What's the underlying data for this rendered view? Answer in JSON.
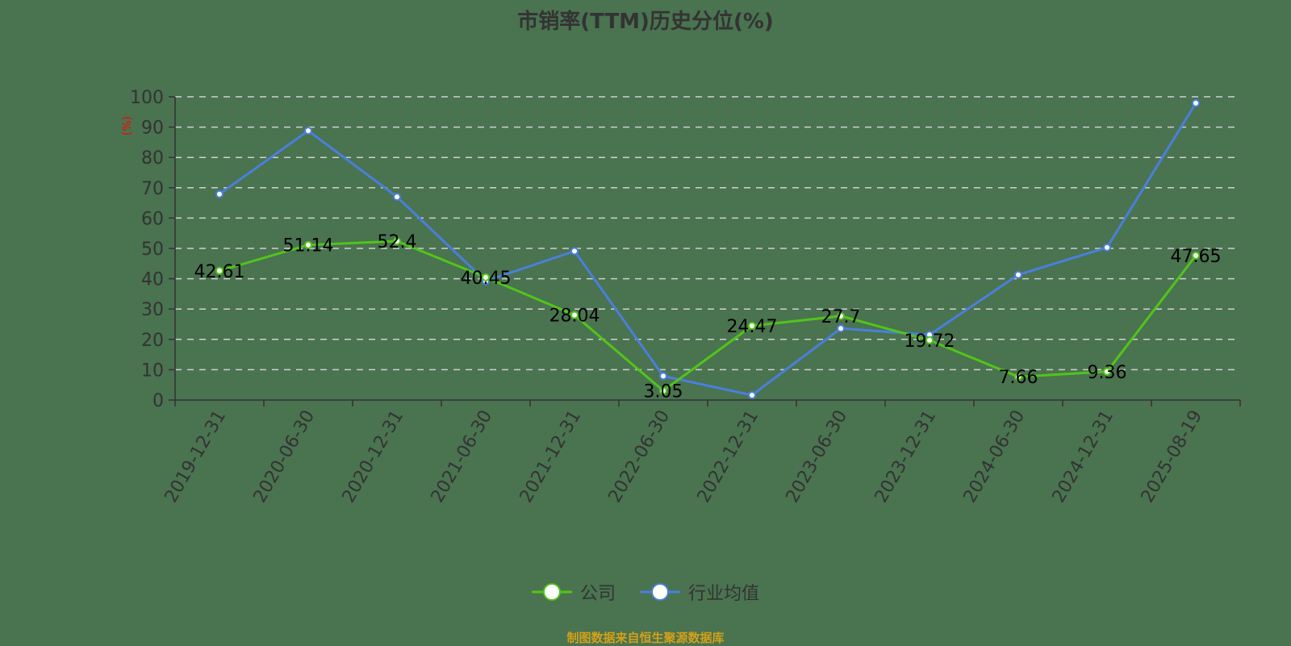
{
  "title": "市销率(TTM)历史分位(%)",
  "source_note": "制图数据来自恒生聚源数据库",
  "colors": {
    "background": "#4a7350",
    "company": "#52c41a",
    "industry": "#4a7fdc",
    "grid": "#d0d0d0",
    "axis": "#333333",
    "unit": "#ff0000",
    "source": "#d4a017"
  },
  "legend": [
    {
      "label": "公司",
      "color": "#52c41a"
    },
    {
      "label": "行业均值",
      "color": "#4a7fdc"
    }
  ],
  "chart_data": {
    "type": "line",
    "title": "市销率(TTM)历史分位(%)",
    "xlabel": "",
    "ylabel": "(%)",
    "ylim": [
      0,
      100
    ],
    "yticks": [
      0,
      10,
      20,
      30,
      40,
      50,
      60,
      70,
      80,
      90,
      100
    ],
    "grid": true,
    "legend_position": "bottom",
    "categories": [
      "2019-12-31",
      "2020-06-30",
      "2020-12-31",
      "2021-06-30",
      "2021-12-31",
      "2022-06-30",
      "2022-12-31",
      "2023-06-30",
      "2023-12-31",
      "2024-06-30",
      "2024-12-31",
      "2025-08-19"
    ],
    "series": [
      {
        "name": "公司",
        "color": "#52c41a",
        "show_labels": true,
        "values": [
          42.61,
          51.14,
          52.4,
          40.45,
          28.04,
          3.05,
          24.47,
          27.7,
          19.72,
          7.66,
          9.36,
          47.65
        ]
      },
      {
        "name": "行业均值",
        "color": "#4a7fdc",
        "show_labels": false,
        "values": [
          67.9,
          88.8,
          67.0,
          39.2,
          49.1,
          7.9,
          1.6,
          23.6,
          21.5,
          41.3,
          50.3,
          97.9
        ]
      }
    ]
  }
}
